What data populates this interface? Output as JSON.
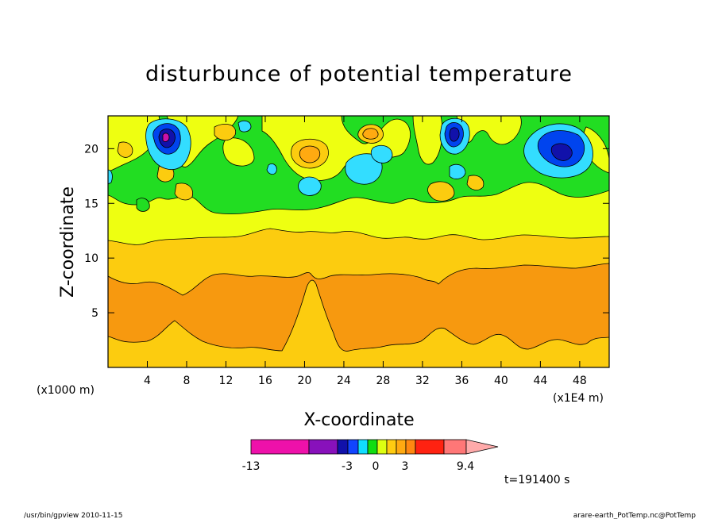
{
  "chart_data": {
    "type": "heatmap",
    "title": "disturbunce of potential temperature",
    "xlabel": "X-coordinate",
    "ylabel": "Z-coordinate",
    "x_unit_left": "(x1000 m)",
    "x_unit_right": "(x1E4 m)",
    "xlim": [
      0,
      51
    ],
    "ylim": [
      0,
      23
    ],
    "x_ticks": [
      4,
      8,
      12,
      16,
      20,
      24,
      28,
      32,
      36,
      40,
      44,
      48
    ],
    "y_ticks": [
      5,
      10,
      15,
      20
    ],
    "time_label": "t=191400 s",
    "colorbar": {
      "tick_labels": [
        "-13",
        "-3",
        "0",
        "3",
        "9.4"
      ],
      "colors": [
        "#ee11aa",
        "#8811bb",
        "#1111aa",
        "#1144ff",
        "#11ddff",
        "#11dd11",
        "#ddff11",
        "#ffcc11",
        "#ffaa11",
        "#ff8811",
        "#ff2211",
        "#ff7777",
        "#ffaaaa"
      ]
    },
    "levels_colors": {
      "deep_orange": "#f7990f",
      "orange": "#fccc0f",
      "yellow": "#eeff11",
      "green": "#22dd22",
      "cyan": "#33ddff",
      "blue": "#0044ee",
      "navy": "#1111aa",
      "magenta": "#cc11aa",
      "light_orange": "#ffbb11"
    }
  },
  "footer": {
    "left": "/usr/bin/gpview   2010-11-15",
    "right": "arare-earth_PotTemp.nc@PotTemp"
  }
}
